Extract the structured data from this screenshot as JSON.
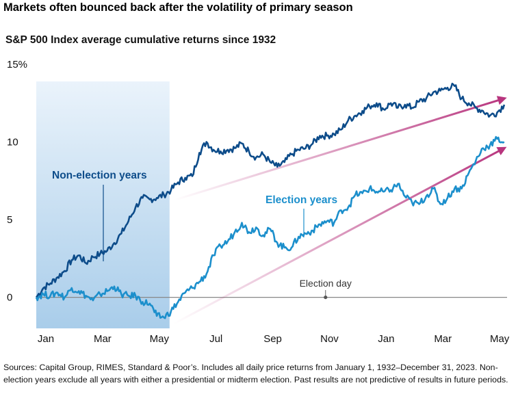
{
  "title": "Markets often bounced back after the volatility of primary season",
  "subtitle": "S&P 500 Index average cumulative returns since 1932",
  "footnote": "Sources: Capital Group, RIMES, Standard & Poor’s. Includes all daily price returns from January 1, 1932–December 31, 2023. Non-election years exclude all years with either a presidential or midterm election. Past results are not predictive of results in future periods.",
  "colors": {
    "non_election": "#0d4c8a",
    "election": "#1c8fcc",
    "arrow": "#b8357e",
    "shade_top": "#eaf3fb",
    "shade_bottom": "#a9cdea",
    "zero_line": "#888888"
  },
  "chart_data": {
    "type": "line",
    "x_unit": "month offset from Jan 1 of year 1 (0 = Jan, 17 = Jun of year 2)",
    "xlim": [
      0,
      16.6
    ],
    "ylim": [
      -2,
      15
    ],
    "yticks": [
      0,
      5,
      10,
      15
    ],
    "ytick_labels": [
      "0",
      "5",
      "10",
      "15%"
    ],
    "xticks": [
      0,
      2,
      4,
      6,
      8,
      10,
      12,
      14,
      16
    ],
    "xtick_labels": [
      "Jan",
      "Mar",
      "May",
      "Jul",
      "Sep",
      "Nov",
      "Jan",
      "Mar",
      "May"
    ],
    "shaded_region": {
      "x": [
        0,
        4.7
      ]
    },
    "grid": false,
    "annotations": {
      "non_election_label": "Non-election years",
      "election_label": "Election years",
      "election_day": "Election day",
      "election_day_x": 10.2
    },
    "series": [
      {
        "name": "Non-election years",
        "x": [
          0,
          0.25,
          0.5,
          0.75,
          1,
          1.25,
          1.5,
          1.75,
          2,
          2.25,
          2.5,
          2.75,
          3,
          3.25,
          3.5,
          3.75,
          4,
          4.25,
          4.5,
          4.75,
          5,
          5.25,
          5.5,
          5.75,
          6,
          6.25,
          6.5,
          6.75,
          7,
          7.25,
          7.5,
          7.75,
          8,
          8.25,
          8.5,
          8.75,
          9,
          9.25,
          9.5,
          9.75,
          10,
          10.25,
          10.5,
          10.75,
          11,
          11.25,
          11.5,
          11.75,
          12,
          12.25,
          12.5,
          12.75,
          13,
          13.25,
          13.5,
          13.75,
          14,
          14.25,
          14.5,
          14.75,
          15,
          15.25,
          15.5,
          15.75,
          16,
          16.25,
          16.5
        ],
        "y": [
          0,
          0.6,
          0.9,
          1.3,
          1.7,
          2.4,
          2.7,
          2.2,
          2.6,
          2.8,
          3.0,
          3.5,
          4.1,
          4.9,
          5.8,
          6.4,
          6.3,
          6.4,
          6.6,
          6.9,
          7.4,
          7.7,
          7.8,
          9.3,
          10.0,
          9.5,
          9.4,
          9.5,
          9.6,
          9.9,
          9.4,
          9.0,
          9.2,
          8.7,
          8.4,
          8.7,
          9.2,
          9.5,
          9.6,
          9.9,
          10.4,
          10.4,
          10.5,
          10.8,
          11.4,
          11.7,
          12.0,
          12.3,
          12.5,
          12.1,
          12.5,
          12.2,
          12.4,
          12.2,
          12.6,
          12.8,
          13.2,
          13.3,
          13.5,
          13.6,
          12.8,
          12.5,
          12.2,
          12.0,
          11.7,
          11.9,
          12.4
        ]
      },
      {
        "name": "Election years",
        "x": [
          0,
          0.25,
          0.5,
          0.75,
          1,
          1.25,
          1.5,
          1.75,
          2,
          2.25,
          2.5,
          2.75,
          3,
          3.25,
          3.5,
          3.75,
          4,
          4.25,
          4.5,
          4.75,
          5,
          5.25,
          5.5,
          5.75,
          6,
          6.25,
          6.5,
          6.75,
          7,
          7.25,
          7.5,
          7.75,
          8,
          8.25,
          8.5,
          8.75,
          9,
          9.25,
          9.5,
          9.75,
          10,
          10.25,
          10.5,
          10.75,
          11,
          11.25,
          11.5,
          11.75,
          12,
          12.25,
          12.5,
          12.75,
          13,
          13.25,
          13.5,
          13.75,
          14,
          14.25,
          14.5,
          14.75,
          15,
          15.25,
          15.5,
          15.75,
          16,
          16.25,
          16.5
        ],
        "y": [
          0,
          0.2,
          0.1,
          0.3,
          0.0,
          0.6,
          0.4,
          0.1,
          -0.2,
          0.2,
          0.4,
          0.7,
          0.2,
          0.1,
          0.1,
          -0.3,
          -0.4,
          -1.2,
          -1.3,
          -0.9,
          -0.3,
          0.3,
          0.6,
          1.0,
          1.5,
          2.7,
          3.3,
          3.6,
          4.2,
          4.8,
          4.2,
          4.5,
          4.0,
          4.4,
          3.5,
          3.2,
          3.2,
          3.9,
          4.1,
          4.3,
          4.7,
          4.9,
          4.8,
          5.6,
          5.8,
          6.6,
          6.7,
          7.0,
          6.8,
          6.8,
          6.9,
          7.3,
          6.5,
          6.1,
          6.0,
          6.5,
          7.0,
          6.0,
          6.4,
          7.0,
          7.0,
          8.0,
          8.8,
          9.6,
          9.8,
          10.2,
          10.0
        ]
      }
    ],
    "arrows": [
      {
        "from": [
          4.85,
          6.25
        ],
        "to": [
          16.5,
          12.8
        ]
      },
      {
        "from": [
          4.85,
          -1.7
        ],
        "to": [
          16.5,
          9.6
        ]
      }
    ]
  }
}
